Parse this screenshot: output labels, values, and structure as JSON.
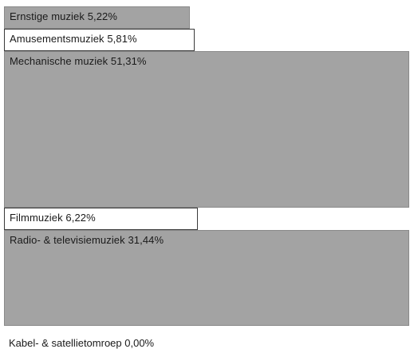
{
  "chart_data": {
    "type": "bar",
    "orientation": "horizontal",
    "categories": [
      "Ernstige muziek",
      "Amusementsmuziek",
      "Mechanische muziek",
      "Filmmuziek",
      "Radio- & televisiemuziek",
      "Kabel- & satellietomroep"
    ],
    "values": [
      5.22,
      5.81,
      51.31,
      6.22,
      31.44,
      0.0
    ],
    "labels": [
      "Ernstige muziek 5,22%",
      "Amusementsmuziek 5,81%",
      "Mechanische muziek 51,31%",
      "Filmmuziek 6,22%",
      "Radio- & televisiemuziek 31,44%",
      "Kabel- & satellietomroep 0,00%"
    ],
    "fill": [
      "gray",
      "white",
      "gray",
      "white",
      "gray",
      "white"
    ],
    "title": "",
    "xlabel": "",
    "ylabel": "",
    "grid": false,
    "legend": "none"
  },
  "colors": {
    "bar_gray": "#a3a3a3",
    "bar_white": "#ffffff",
    "outline": "#3a3a3a",
    "text": "#1a1a1a"
  }
}
